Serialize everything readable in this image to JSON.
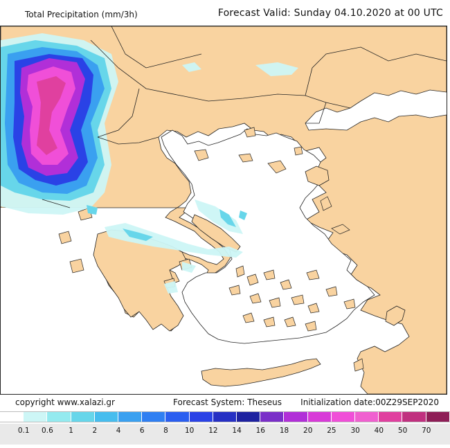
{
  "header": {
    "title": "Total Precipitation (mm/3h)",
    "forecast_valid": "Forecast Valid:  Sunday 04.10.2020 at 00 UTC"
  },
  "footer": {
    "copyright": "copyright www.xalazi.gr",
    "system": "Forecast System: Theseus",
    "initialization": "Initialization date:00Z29SEP2020"
  },
  "colors": {
    "land": "#f9d3a0",
    "sea": "#ffffff",
    "borders": "#222222"
  },
  "legend": {
    "colors": [
      "#ffffff",
      "#cdf6f6",
      "#94eaef",
      "#67d6ea",
      "#47bdee",
      "#3aa0f0",
      "#2f7ff2",
      "#2a5ef0",
      "#2a42e6",
      "#2630c4",
      "#1e22a0",
      "#7a2fc8",
      "#b12fd8",
      "#d83ad8",
      "#f04fd8",
      "#f060d0",
      "#e0409f",
      "#c0307f",
      "#8e1e57"
    ],
    "labels": [
      "0.1",
      "0.6",
      "1",
      "2",
      "4",
      "6",
      "8",
      "10",
      "12",
      "14",
      "16",
      "18",
      "20",
      "25",
      "30",
      "40",
      "50",
      "70"
    ]
  }
}
